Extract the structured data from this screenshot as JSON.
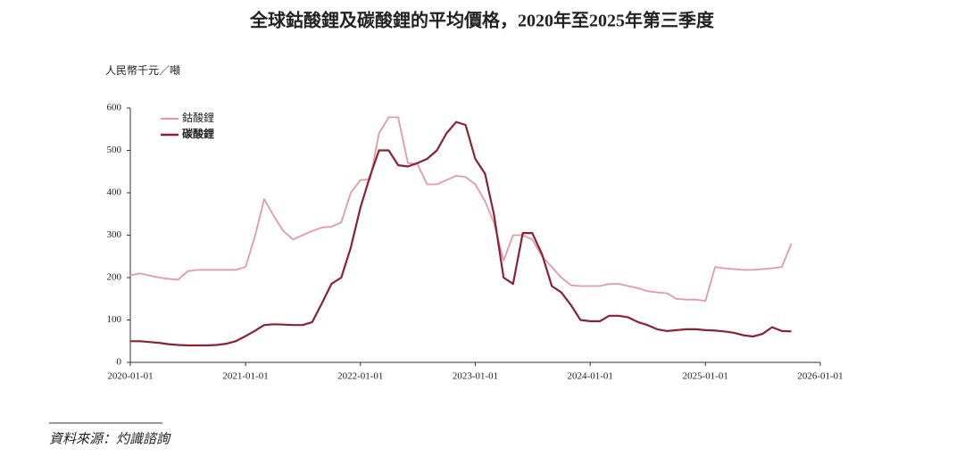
{
  "chart_data": {
    "type": "line",
    "title": "全球鈷酸鋰及碳酸鋰的平均價格，2020年至2025年第三季度",
    "y_label": "人民幣千元／噸",
    "source": "資料來源：灼識諮詢",
    "x": [
      "2020-01-01",
      "2020-02-01",
      "2020-03-01",
      "2020-04-01",
      "2020-05-01",
      "2020-06-01",
      "2020-07-01",
      "2020-08-01",
      "2020-09-01",
      "2020-10-01",
      "2020-11-01",
      "2020-12-01",
      "2021-01-01",
      "2021-02-01",
      "2021-03-01",
      "2021-04-01",
      "2021-05-01",
      "2021-06-01",
      "2021-07-01",
      "2021-08-01",
      "2021-09-01",
      "2021-10-01",
      "2021-11-01",
      "2021-12-01",
      "2022-01-01",
      "2022-02-01",
      "2022-03-01",
      "2022-04-01",
      "2022-05-01",
      "2022-06-01",
      "2022-07-01",
      "2022-08-01",
      "2022-09-01",
      "2022-10-01",
      "2022-11-01",
      "2022-12-01",
      "2023-01-01",
      "2023-02-01",
      "2023-03-01",
      "2023-04-01",
      "2023-05-01",
      "2023-06-01",
      "2023-07-01",
      "2023-08-01",
      "2023-09-01",
      "2023-10-01",
      "2023-11-01",
      "2023-12-01",
      "2024-01-01",
      "2024-02-01",
      "2024-03-01",
      "2024-04-01",
      "2024-05-01",
      "2024-06-01",
      "2024-07-01",
      "2024-08-01",
      "2024-09-01",
      "2024-10-01",
      "2024-11-01",
      "2024-12-01",
      "2025-01-01",
      "2025-02-01",
      "2025-03-01",
      "2025-04-01",
      "2025-05-01",
      "2025-06-01",
      "2025-07-01",
      "2025-08-01",
      "2025-09-01",
      "2025-10-01"
    ],
    "series": [
      {
        "name": "鈷酸鋰",
        "color": "#e59aa3",
        "values": [
          205,
          210,
          205,
          200,
          197,
          195,
          215,
          218,
          218,
          218,
          218,
          218,
          225,
          300,
          385,
          345,
          310,
          290,
          300,
          310,
          318,
          320,
          330,
          400,
          430,
          432,
          540,
          578,
          578,
          470,
          468,
          420,
          420,
          430,
          440,
          437,
          420,
          380,
          330,
          240,
          300,
          300,
          290,
          250,
          225,
          200,
          182,
          180,
          180,
          180,
          185,
          185,
          180,
          175,
          168,
          165,
          163,
          150,
          148,
          148,
          145,
          225,
          222,
          220,
          218,
          218,
          220,
          222,
          225,
          280
        ]
      },
      {
        "name": "碳酸鋰",
        "color": "#8b2232",
        "values": [
          50,
          50,
          48,
          46,
          43,
          41,
          40,
          40,
          40,
          41,
          44,
          50,
          62,
          75,
          88,
          90,
          89,
          88,
          88,
          95,
          140,
          185,
          200,
          270,
          365,
          440,
          500,
          500,
          465,
          462,
          470,
          480,
          500,
          540,
          567,
          560,
          480,
          445,
          350,
          200,
          185,
          305,
          305,
          255,
          180,
          165,
          135,
          100,
          97,
          97,
          110,
          110,
          106,
          95,
          88,
          78,
          74,
          76,
          78,
          78,
          76,
          75,
          73,
          70,
          64,
          61,
          67,
          83,
          74,
          73
        ]
      }
    ],
    "xlim": [
      "2020-01-01",
      "2026-01-01"
    ],
    "xticks": [
      "2020-01-01",
      "2021-01-01",
      "2022-01-01",
      "2023-01-01",
      "2024-01-01",
      "2025-01-01",
      "2026-01-01"
    ],
    "ylim": [
      0,
      600
    ],
    "yticks": [
      0,
      100,
      200,
      300,
      400,
      500,
      600
    ],
    "legend": "top-left"
  }
}
